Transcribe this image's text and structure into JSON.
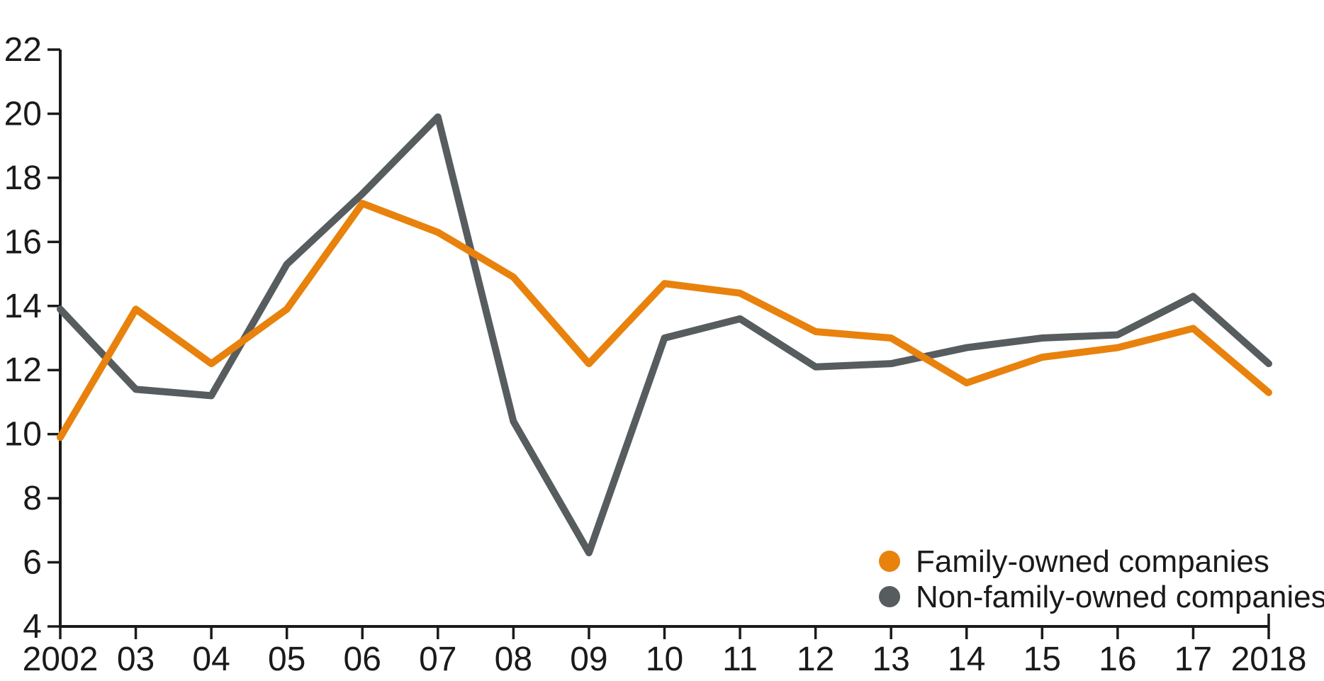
{
  "chart_data": {
    "type": "line",
    "title": "",
    "xlabel": "",
    "ylabel": "",
    "x": [
      2002,
      2003,
      2004,
      2005,
      2006,
      2007,
      2008,
      2009,
      2010,
      2011,
      2012,
      2013,
      2014,
      2015,
      2016,
      2017,
      2018
    ],
    "x_tick_labels": [
      "2002",
      "03",
      "04",
      "05",
      "06",
      "07",
      "08",
      "09",
      "10",
      "11",
      "12",
      "13",
      "14",
      "15",
      "16",
      "17",
      "2018"
    ],
    "y_ticks": [
      4,
      6,
      8,
      10,
      12,
      14,
      16,
      18,
      20,
      22
    ],
    "ylim": [
      4,
      22
    ],
    "grid": false,
    "legend_position": "inside-bottom-right",
    "series": [
      {
        "name": "Family-owned companies",
        "color": "#E8820D",
        "values": [
          9.9,
          13.9,
          12.2,
          13.9,
          17.2,
          16.3,
          14.9,
          12.2,
          14.7,
          14.4,
          13.2,
          13.0,
          11.6,
          12.4,
          12.7,
          13.3,
          11.3
        ]
      },
      {
        "name": "Non-family-owned companies",
        "color": "#575C5F",
        "values": [
          13.9,
          11.4,
          11.2,
          15.3,
          17.5,
          19.9,
          10.4,
          6.3,
          13.0,
          13.6,
          12.1,
          12.2,
          12.7,
          13.0,
          13.1,
          14.3,
          12.2
        ]
      }
    ],
    "axis_color": "#1a1a1a"
  }
}
